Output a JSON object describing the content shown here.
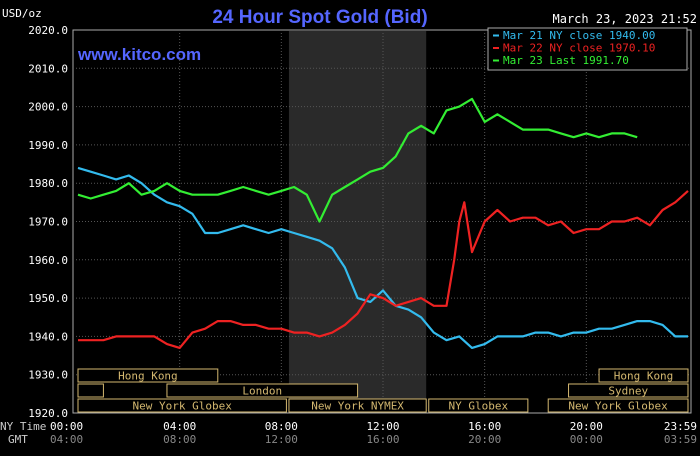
{
  "chart_data": {
    "type": "line",
    "title": "24 Hour Spot Gold (Bid)",
    "ylabel": "USD/oz",
    "date_stamp": "March 23, 2023 21:52",
    "source_link": "www.kitco.com",
    "ylim": [
      1920,
      2020
    ],
    "y_ticks": [
      "2020.0",
      "2010.0",
      "2000.0",
      "1990.0",
      "1980.0",
      "1970.0",
      "1960.0",
      "1950.0",
      "1940.0",
      "1930.0",
      "1920.0"
    ],
    "x_hours": [
      0,
      4,
      8,
      12,
      16,
      20,
      24
    ],
    "x_ticks_ny": [
      "00:00",
      "04:00",
      "08:00",
      "12:00",
      "16:00",
      "20:00",
      "23:59"
    ],
    "x_ticks_gmt": [
      "04:00",
      "08:00",
      "12:00",
      "16:00",
      "20:00",
      "00:00",
      "03:59"
    ],
    "x_row_labels": [
      "NY Time",
      "GMT"
    ],
    "series": [
      {
        "name": "Mar 21 NY close 1940.00",
        "color": "#33bbee",
        "x": [
          0,
          0.5,
          1,
          1.5,
          2,
          2.5,
          3,
          3.5,
          4,
          4.5,
          5,
          5.5,
          6,
          6.5,
          7,
          7.5,
          8,
          8.5,
          9,
          9.5,
          10,
          10.5,
          11,
          11.5,
          12,
          12.5,
          13,
          13.5,
          14,
          14.5,
          15,
          15.5,
          16,
          16.5,
          17,
          17.5,
          18,
          18.5,
          19,
          19.5,
          20,
          20.5,
          21,
          21.5,
          22,
          22.5,
          23,
          23.5,
          24
        ],
        "values": [
          1984,
          1983,
          1982,
          1981,
          1982,
          1980,
          1977,
          1975,
          1974,
          1972,
          1967,
          1967,
          1968,
          1969,
          1968,
          1967,
          1968,
          1967,
          1966,
          1965,
          1963,
          1958,
          1950,
          1949,
          1952,
          1948,
          1947,
          1945,
          1941,
          1939,
          1940,
          1937,
          1938,
          1940,
          1940,
          1940,
          1941,
          1941,
          1940,
          1941,
          1941,
          1942,
          1942,
          1943,
          1944,
          1944,
          1943,
          1940,
          1940
        ]
      },
      {
        "name": "Mar 22 NY close 1970.10",
        "color": "#ee2222",
        "x": [
          0,
          0.5,
          1,
          1.5,
          2,
          2.5,
          3,
          3.5,
          4,
          4.5,
          5,
          5.5,
          6,
          6.5,
          7,
          7.5,
          8,
          8.5,
          9,
          9.5,
          10,
          10.5,
          11,
          11.5,
          12,
          12.5,
          13,
          13.5,
          14,
          14.5,
          14.8,
          15,
          15.2,
          15.5,
          16,
          16.5,
          17,
          17.5,
          18,
          18.5,
          19,
          19.5,
          20,
          20.5,
          21,
          21.5,
          22,
          22.5,
          23,
          23.5,
          24
        ],
        "values": [
          1939,
          1939,
          1939,
          1940,
          1940,
          1940,
          1940,
          1938,
          1937,
          1941,
          1942,
          1944,
          1944,
          1943,
          1943,
          1942,
          1942,
          1941,
          1941,
          1940,
          1941,
          1943,
          1946,
          1951,
          1950,
          1948,
          1949,
          1950,
          1948,
          1948,
          1960,
          1970,
          1975,
          1962,
          1970,
          1973,
          1970,
          1971,
          1971,
          1969,
          1970,
          1967,
          1968,
          1968,
          1970,
          1970,
          1971,
          1969,
          1973,
          1975,
          1978
        ]
      },
      {
        "name": "Mar 23 Last 1991.70",
        "color": "#33ee33",
        "x": [
          0,
          0.5,
          1,
          1.5,
          2,
          2.5,
          3,
          3.5,
          4,
          4.5,
          5,
          5.5,
          6,
          6.5,
          7,
          7.5,
          8,
          8.5,
          9,
          9.5,
          10,
          10.5,
          11,
          11.5,
          12,
          12.5,
          13,
          13.5,
          14,
          14.5,
          15,
          15.5,
          16,
          16.5,
          17,
          17.5,
          18,
          18.5,
          19,
          19.5,
          20,
          20.5,
          21,
          21.5,
          22
        ],
        "values": [
          1977,
          1976,
          1977,
          1978,
          1980,
          1977,
          1978,
          1980,
          1978,
          1977,
          1977,
          1977,
          1978,
          1979,
          1978,
          1977,
          1978,
          1979,
          1977,
          1970,
          1977,
          1979,
          1981,
          1983,
          1984,
          1987,
          1993,
          1995,
          1993,
          1999,
          2000,
          2002,
          1996,
          1998,
          1996,
          1994,
          1994,
          1994,
          1993,
          1992,
          1993,
          1992,
          1993,
          1993,
          1992
        ]
      }
    ],
    "session_bars": [
      [
        {
          "label": "Hong Kong",
          "start": 0,
          "end": 5.5
        },
        {
          "label": "Hong Kong",
          "start": 20.5,
          "end": 24
        }
      ],
      [
        {
          "label": "",
          "start": 0,
          "end": 1
        },
        {
          "label": "London",
          "start": 3.5,
          "end": 11
        },
        {
          "label": "Sydney",
          "start": 19.3,
          "end": 24
        }
      ],
      [
        {
          "label": "New York Globex",
          "start": 0,
          "end": 8.2
        },
        {
          "label": "New York NYMEX",
          "start": 8.3,
          "end": 13.7
        },
        {
          "label": "NY Globex",
          "start": 13.8,
          "end": 17.7
        },
        {
          "label": "New York Globex",
          "start": 18.5,
          "end": 24
        }
      ]
    ],
    "night_shade": {
      "start": 8.3,
      "end": 13.7
    },
    "grid": true,
    "legend_position": "top-right"
  }
}
